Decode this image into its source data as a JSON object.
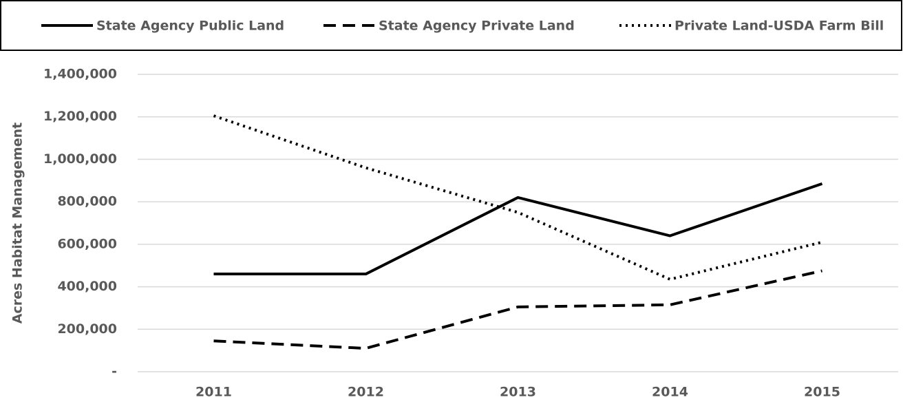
{
  "chart_data": {
    "type": "line",
    "y_label": "Acres Habitat Management",
    "categories": [
      "2011",
      "2012",
      "2013",
      "2014",
      "2015"
    ],
    "series": [
      {
        "name": "State Agency Public Land",
        "color": "#000000",
        "dash": "solid",
        "values": [
          460000,
          460000,
          820000,
          640000,
          885000
        ]
      },
      {
        "name": "State Agency Private Land",
        "color": "#000000",
        "dash": "dashed",
        "values": [
          145000,
          110000,
          305000,
          315000,
          475000
        ]
      },
      {
        "name": "Private Land-USDA Farm Bill",
        "color": "#000000",
        "dash": "dotted",
        "values": [
          1205000,
          960000,
          750000,
          435000,
          610000
        ]
      }
    ],
    "ylim": [
      0,
      1400000
    ],
    "yticks": [
      {
        "value": 0,
        "label": "-"
      },
      {
        "value": 200000,
        "label": "200,000"
      },
      {
        "value": 400000,
        "label": "400,000"
      },
      {
        "value": 600000,
        "label": "600,000"
      },
      {
        "value": 800000,
        "label": "800,000"
      },
      {
        "value": 1000000,
        "label": "1,000,000"
      },
      {
        "value": 1200000,
        "label": "1,200,000"
      },
      {
        "value": 1400000,
        "label": "1,400,000"
      }
    ],
    "grid": true,
    "legend": "top"
  }
}
